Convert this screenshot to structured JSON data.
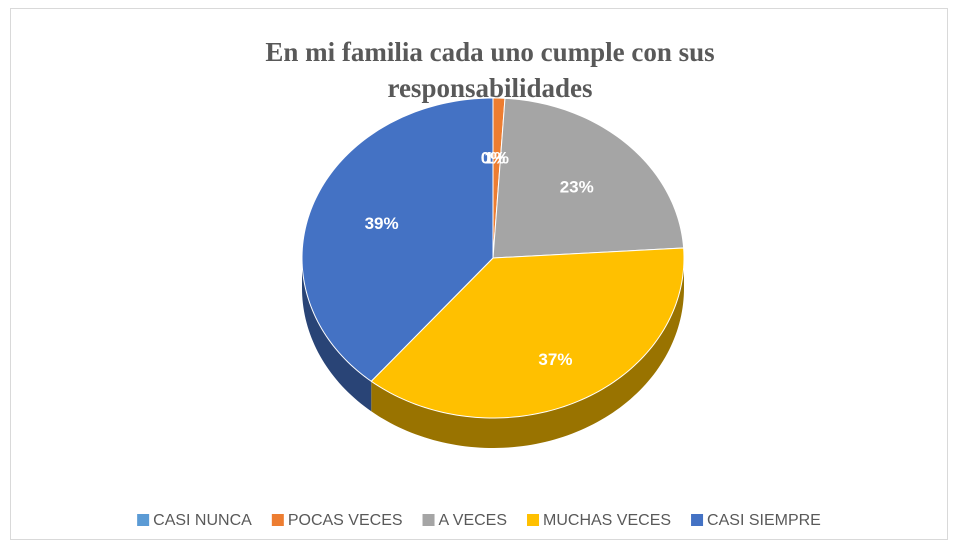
{
  "chart_data": {
    "type": "pie",
    "title": "En mi familia cada uno cumple con sus responsabilidades",
    "categories": [
      "CASI NUNCA",
      "POCAS VECES",
      "A VECES",
      "MUCHAS VECES",
      "CASI SIEMPRE"
    ],
    "values": [
      0,
      1,
      23,
      37,
      39
    ],
    "value_labels": [
      "0%",
      "1%",
      "23%",
      "37%",
      "39%"
    ],
    "colors": [
      "#5b9bd5",
      "#ed7d31",
      "#a5a5a5",
      "#ffc000",
      "#4472c4"
    ],
    "legend": "bottom"
  }
}
